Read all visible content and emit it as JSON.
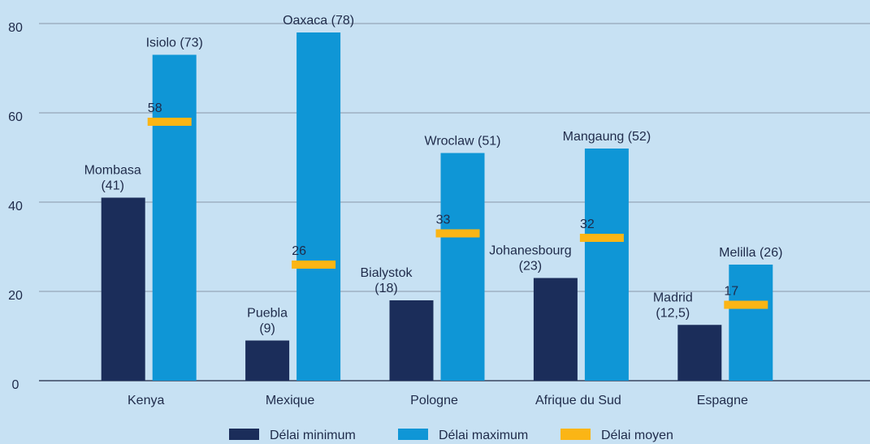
{
  "chart_data": {
    "type": "bar",
    "categories": [
      "Kenya",
      "Mexique",
      "Pologne",
      "Afrique du Sud",
      "Espagne"
    ],
    "series": [
      {
        "name": "Délai minimum",
        "color": "#1b2d5a",
        "values": [
          41,
          9,
          18,
          23,
          12.5
        ],
        "value_labels": [
          "Mombasa\n(41)",
          "Puebla\n(9)",
          "Bialystok\n(18)",
          "Johanesbourg\n(23)",
          "Madrid\n(12,5)"
        ]
      },
      {
        "name": "Délai maximum",
        "color": "#0f96d6",
        "values": [
          73,
          78,
          51,
          52,
          26
        ],
        "value_labels": [
          "Isiolo (73)",
          "Oaxaca (78)",
          "Wroclaw (51)",
          "Mangaung (52)",
          "Melilla (26)"
        ]
      },
      {
        "name": "Délai moyen",
        "color": "#fbb515",
        "marker": "dash",
        "values": [
          58,
          26,
          33,
          32,
          17
        ]
      }
    ],
    "ylim": [
      0,
      80
    ],
    "yticks": [
      0,
      20,
      40,
      60,
      80
    ],
    "grid": true,
    "legend": "bottom"
  }
}
